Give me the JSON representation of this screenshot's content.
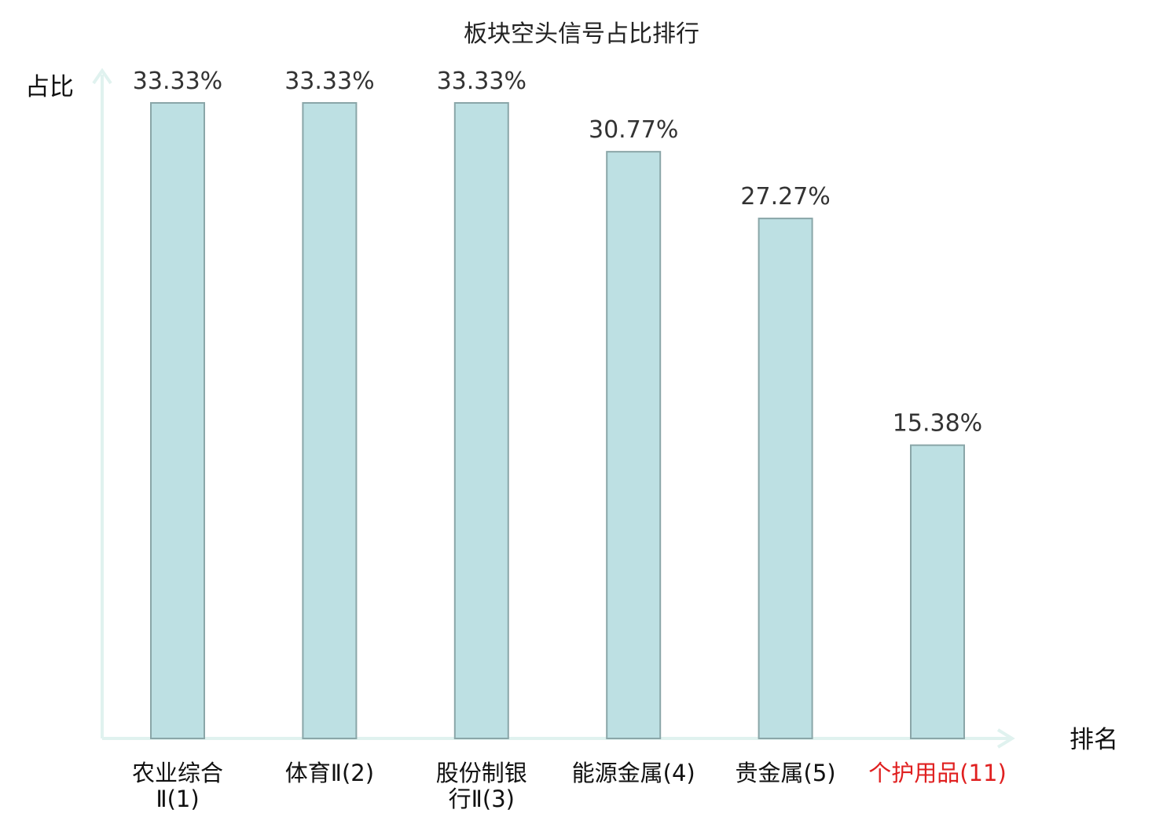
{
  "chart_data": {
    "type": "bar",
    "title": "板块空头信号占比排行",
    "xlabel": "排名",
    "ylabel": "占比",
    "categories": [
      [
        "农业综合",
        "Ⅱ(1)"
      ],
      [
        "体育Ⅱ(2)"
      ],
      [
        "股份制银",
        "行Ⅱ(3)"
      ],
      [
        "能源金属(4)"
      ],
      [
        "贵金属(5)"
      ],
      [
        "个护用品(11)"
      ]
    ],
    "values": [
      33.33,
      33.33,
      33.33,
      30.77,
      27.27,
      15.38
    ],
    "value_labels": [
      "33.33%",
      "33.33%",
      "33.33%",
      "30.77%",
      "27.27%",
      "15.38%"
    ],
    "category_colors": [
      "#111111",
      "#111111",
      "#111111",
      "#111111",
      "#111111",
      "#e02020"
    ],
    "ylim": [
      0,
      33.33
    ],
    "grid": false,
    "legend": "none",
    "colors": {
      "bar_fill": "#bde0e3",
      "bar_stroke": "#8aa6a8",
      "axis": "#e0f2ef",
      "highlight": "#e02020"
    }
  }
}
